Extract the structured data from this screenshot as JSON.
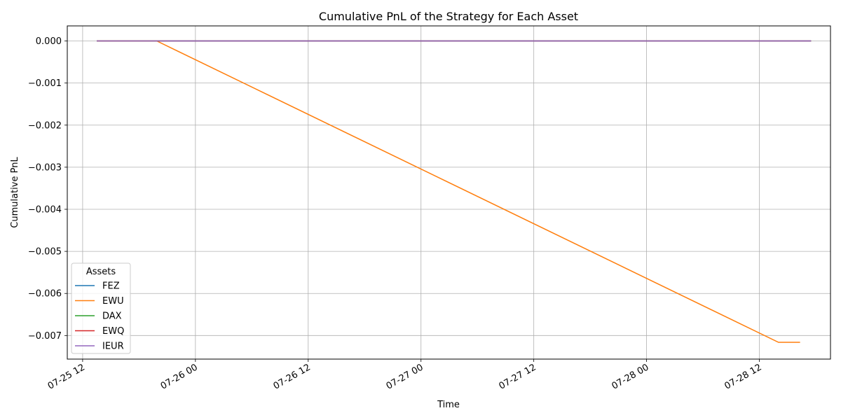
{
  "chart_data": {
    "type": "line",
    "title": "Cumulative PnL of the Strategy for Each Asset",
    "xlabel": "Time",
    "ylabel": "Cumulative PnL",
    "x_tick_labels": [
      "07-25 12",
      "07-26 00",
      "07-26 12",
      "07-27 00",
      "07-27 12",
      "07-28 00",
      "07-28 12"
    ],
    "x_ticks": [
      "2023-07-25T12:00",
      "2023-07-26T00:00",
      "2023-07-26T12:00",
      "2023-07-27T00:00",
      "2023-07-27T12:00",
      "2023-07-28T00:00",
      "2023-07-28T12:00"
    ],
    "xlim": [
      "2023-07-25T10:22",
      "2023-07-28T19:34"
    ],
    "y_ticks": [
      0.0,
      -0.001,
      -0.002,
      -0.003,
      -0.004,
      -0.005,
      -0.006,
      -0.007
    ],
    "y_tick_labels": [
      "0.000",
      "−0.001",
      "−0.002",
      "−0.003",
      "−0.004",
      "−0.005",
      "−0.006",
      "−0.007"
    ],
    "ylim": [
      -0.00756,
      0.000358
    ],
    "grid": true,
    "legend": {
      "title": "Assets",
      "placement": "lower-left"
    },
    "series": [
      {
        "name": "FEZ",
        "color": "#1f77b4",
        "x": [
          "2023-07-25T13:30",
          "2023-07-28T17:30"
        ],
        "y": [
          0.0,
          0.0
        ]
      },
      {
        "name": "EWU",
        "color": "#ff7f0e",
        "x": [
          "2023-07-25T13:30",
          "2023-07-25T19:53",
          "2023-07-28T14:02",
          "2023-07-28T16:20"
        ],
        "y": [
          0.0,
          0.0,
          -0.00716,
          -0.00716
        ]
      },
      {
        "name": "DAX",
        "color": "#2ca02c",
        "x": [
          "2023-07-25T13:30",
          "2023-07-28T17:30"
        ],
        "y": [
          0.0,
          0.0
        ]
      },
      {
        "name": "EWQ",
        "color": "#d62728",
        "x": [
          "2023-07-25T13:30",
          "2023-07-28T17:30"
        ],
        "y": [
          0.0,
          0.0
        ]
      },
      {
        "name": "IEUR",
        "color": "#9467bd",
        "x": [
          "2023-07-25T13:30",
          "2023-07-28T17:30"
        ],
        "y": [
          0.0,
          0.0
        ]
      }
    ]
  }
}
